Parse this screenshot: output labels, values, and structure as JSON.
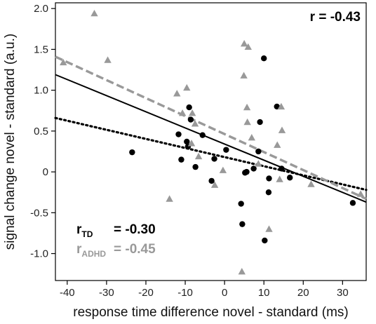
{
  "chart_data": {
    "type": "scatter",
    "xlabel": "response time difference novel - standard (ms)",
    "ylabel": "signal change novel - standard (a.u.)",
    "xlim": [
      -43,
      36
    ],
    "ylim": [
      -1.33,
      2.07
    ],
    "xticks": [
      -40,
      -30,
      -20,
      -10,
      0,
      10,
      20,
      30
    ],
    "xtick_labels": [
      "-40",
      "-30",
      "-20",
      "-10",
      "0",
      "10",
      "20",
      "30"
    ],
    "yticks": [
      -1.0,
      -0.5,
      0,
      0.5,
      1.0,
      1.5,
      2.0
    ],
    "ytick_labels": [
      "-1.0",
      "-0.5",
      "0",
      "0.5",
      "1.0",
      "1.5",
      "2.0"
    ],
    "grid": false,
    "series": [
      {
        "marker": "circle",
        "color": "#000000",
        "points": [
          [
            -23.5,
            0.24
          ],
          [
            -11.7,
            0.46
          ],
          [
            -11.0,
            0.15
          ],
          [
            -9.6,
            0.37
          ],
          [
            -9.3,
            0.31
          ],
          [
            -9.0,
            0.79
          ],
          [
            -8.6,
            0.64
          ],
          [
            -7.4,
            0.06
          ],
          [
            -5.6,
            0.45
          ],
          [
            -3.3,
            -0.11
          ],
          [
            -2.6,
            0.16
          ],
          [
            0.4,
            0.27
          ],
          [
            4.2,
            -0.39
          ],
          [
            4.5,
            -0.64
          ],
          [
            5.2,
            -0.01
          ],
          [
            5.6,
            0.0
          ],
          [
            7.4,
            0.04
          ],
          [
            8.6,
            0.25
          ],
          [
            9.0,
            0.61
          ],
          [
            10.0,
            1.39
          ],
          [
            10.2,
            -0.84
          ],
          [
            11.2,
            -0.25
          ],
          [
            11.3,
            -0.08
          ],
          [
            13.3,
            0.8
          ],
          [
            14.5,
            0.04
          ],
          [
            16.6,
            -0.07
          ],
          [
            32.6,
            -0.38
          ]
        ]
      },
      {
        "marker": "triangle",
        "color": "#999999",
        "points": [
          [
            -33.1,
            1.94
          ],
          [
            -41.0,
            1.34
          ],
          [
            -29.7,
            1.37
          ],
          [
            -14.0,
            -0.33
          ],
          [
            -12.1,
            0.96
          ],
          [
            -10.7,
            0.72
          ],
          [
            -9.6,
            1.03
          ],
          [
            -8.2,
            0.72
          ],
          [
            -7.5,
            0.59
          ],
          [
            -8.4,
            0.35
          ],
          [
            -6.6,
            0.19
          ],
          [
            -2.5,
            -0.16
          ],
          [
            -0.4,
            0.02
          ],
          [
            4.4,
            -1.22
          ],
          [
            4.9,
            1.18
          ],
          [
            5.0,
            1.57
          ],
          [
            6.0,
            1.53
          ],
          [
            5.7,
            0.79
          ],
          [
            5.8,
            0.61
          ],
          [
            6.9,
            0.42
          ],
          [
            8.6,
            0.1
          ],
          [
            11.3,
            -0.7
          ],
          [
            13.4,
            0.33
          ],
          [
            14.4,
            0.8
          ],
          [
            14.6,
            0.51
          ],
          [
            14.0,
            -0.09
          ],
          [
            22.0,
            -0.15
          ],
          [
            34.6,
            -0.27
          ]
        ]
      }
    ],
    "fit_lines": [
      {
        "style": "solid",
        "color": "#000000",
        "x": [
          -43,
          36
        ],
        "y": [
          1.19,
          -0.37
        ]
      },
      {
        "style": "dotted",
        "color": "#000000",
        "x": [
          -43,
          36
        ],
        "y": [
          0.66,
          -0.22
        ]
      },
      {
        "style": "dashed",
        "color": "#999999",
        "x": [
          -43,
          36
        ],
        "y": [
          1.41,
          -0.33
        ]
      }
    ],
    "annotations": {
      "r_all": "r = -0.43",
      "r_td_label": "r",
      "r_td_sub": "TD",
      "r_td_value": "= -0.30",
      "r_adhd_label": "r",
      "r_adhd_sub": "ADHD",
      "r_adhd_value": "= -0.45",
      "td_color": "#000000",
      "adhd_color": "#999999"
    }
  }
}
